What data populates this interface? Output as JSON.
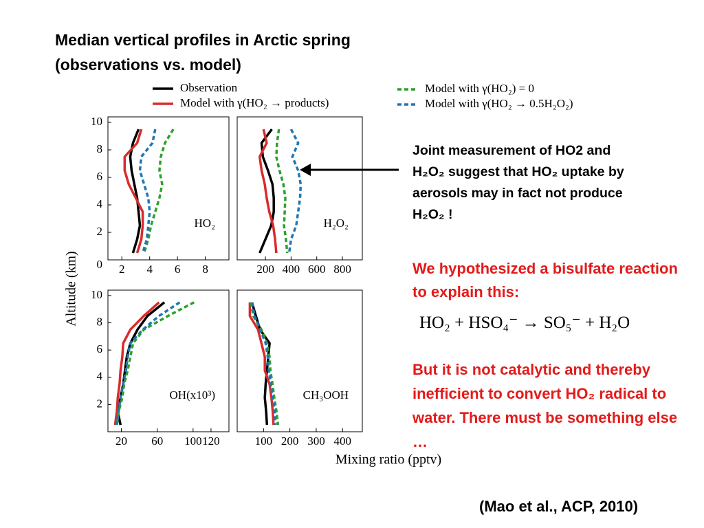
{
  "title": [
    "Median vertical profiles in Arctic spring",
    "(observations vs. model)"
  ],
  "note": "Joint measurement of HO2 and H₂O₂ suggest that HO₂ uptake by aerosols may in fact not produce H₂O₂ !",
  "hypothesis": "We hypothesized a bisulfate reaction to explain this:",
  "equation": "HO₂ + HSO₄⁻ → SO₅⁻ + H₂O",
  "conclusion": "But it is not catalytic and thereby inefficient to convert HO₂ radical to water. There must be something else …",
  "citation": "(Mao et al., ACP, 2010)",
  "ylabel": "Altitude (km)",
  "xlabel": "Mixing ratio (pptv)",
  "chart_data": [
    {
      "type": "line",
      "label": "HO₂",
      "y": [
        9.5,
        8.5,
        7.5,
        6.5,
        5.5,
        4.5,
        3.5,
        2.5,
        1.5,
        0.5
      ],
      "xlim": [
        1,
        9.7
      ],
      "xticks": [
        2,
        4,
        6,
        8
      ],
      "ylim": [
        0,
        10.4
      ],
      "yticks": [
        0,
        2,
        4,
        6,
        8,
        10
      ],
      "series": [
        {
          "name": "Observation",
          "color": "#000000",
          "dashed": false,
          "values": [
            3.2,
            2.8,
            2.6,
            2.7,
            2.9,
            3.1,
            3.2,
            3.3,
            3.1,
            2.8
          ]
        },
        {
          "name": "Model with γ(HO₂ → products)",
          "color": "#d92b2b",
          "dashed": false,
          "values": [
            3.4,
            3.1,
            2.2,
            2.2,
            2.5,
            3.0,
            3.5,
            3.5,
            3.4,
            3.1
          ]
        },
        {
          "name": "Model with γ(HO₂) = 0",
          "color": "#2ca02c",
          "dashed": true,
          "values": [
            5.7,
            5.1,
            4.8,
            4.7,
            4.9,
            4.7,
            4.4,
            4.1,
            3.9,
            3.6
          ]
        },
        {
          "name": "Model with γ(HO₂ → 0.5H₂O₂)",
          "color": "#1f77b4",
          "dashed": true,
          "values": [
            4.4,
            4.2,
            3.4,
            3.3,
            3.6,
            3.9,
            4.0,
            3.9,
            3.8,
            3.5
          ]
        }
      ]
    },
    {
      "type": "line",
      "label": "H₂O₂",
      "y": [
        9.5,
        8.5,
        7.5,
        6.5,
        5.5,
        4.5,
        3.5,
        2.5,
        1.5,
        0.5
      ],
      "xlim": [
        -20,
        955
      ],
      "xticks": [
        200,
        400,
        600,
        800
      ],
      "ylim": [
        0,
        10.4
      ],
      "series": [
        {
          "name": "Observation",
          "color": "#000000",
          "dashed": false,
          "values": [
            250,
            170,
            180,
            220,
            255,
            265,
            265,
            245,
            200,
            155
          ]
        },
        {
          "name": "Model with γ(HO₂ → products)",
          "color": "#d92b2b",
          "dashed": false,
          "values": [
            185,
            210,
            155,
            170,
            195,
            210,
            230,
            260,
            275,
            285
          ]
        },
        {
          "name": "Model with γ(HO₂) = 0",
          "color": "#2ca02c",
          "dashed": true,
          "values": [
            305,
            290,
            285,
            310,
            340,
            355,
            350,
            345,
            360,
            370
          ]
        },
        {
          "name": "Model with γ(HO₂ → 0.5H₂O₂)",
          "color": "#1f77b4",
          "dashed": true,
          "values": [
            400,
            455,
            410,
            455,
            475,
            470,
            455,
            440,
            400,
            385
          ]
        }
      ]
    },
    {
      "type": "line",
      "label": "OH(x10³)",
      "y": [
        9.5,
        8.5,
        7.5,
        6.5,
        5.5,
        4.5,
        3.5,
        2.5,
        1.5,
        0.5
      ],
      "xlim": [
        5,
        140
      ],
      "xticks": [
        20,
        60,
        100,
        120
      ],
      "ylim": [
        0,
        10.4
      ],
      "yticks": [
        2,
        4,
        6,
        8,
        10
      ],
      "series": [
        {
          "name": "Observation",
          "color": "#000000",
          "dashed": false,
          "values": [
            68,
            49,
            38,
            30,
            26,
            24,
            22,
            19,
            16,
            19
          ]
        },
        {
          "name": "Model with γ(HO₂ → products)",
          "color": "#d92b2b",
          "dashed": false,
          "values": [
            62,
            45,
            30,
            22,
            21,
            19,
            18,
            16,
            15,
            13
          ]
        },
        {
          "name": "Model with γ(HO₂) = 0",
          "color": "#2ca02c",
          "dashed": true,
          "values": [
            101,
            72,
            45,
            33,
            30,
            27,
            23,
            21,
            17,
            15
          ]
        },
        {
          "name": "Model with γ(HO₂ → 0.5H₂O₂)",
          "color": "#1f77b4",
          "dashed": true,
          "values": [
            85,
            62,
            44,
            30,
            27,
            25,
            22,
            19,
            17,
            15
          ]
        }
      ]
    },
    {
      "type": "line",
      "label": "CH₃OOH",
      "y": [
        9.5,
        8.5,
        7.5,
        6.5,
        5.5,
        4.5,
        3.5,
        2.5,
        1.5,
        0.5
      ],
      "xlim": [
        0,
        475
      ],
      "xticks": [
        100,
        200,
        300,
        400
      ],
      "ylim": [
        0,
        10.4
      ],
      "series": [
        {
          "name": "Observation",
          "color": "#000000",
          "dashed": false,
          "values": [
            56,
            71,
            87,
            123,
            118,
            113,
            108,
            105,
            110,
            113
          ]
        },
        {
          "name": "Model with γ(HO₂ → products)",
          "color": "#d92b2b",
          "dashed": false,
          "values": [
            48,
            48,
            79,
            92,
            105,
            105,
            123,
            130,
            135,
            138
          ]
        },
        {
          "name": "Model with γ(HO₂) = 0",
          "color": "#2ca02c",
          "dashed": true,
          "values": [
            53,
            61,
            92,
            113,
            123,
            126,
            134,
            141,
            149,
            155
          ]
        },
        {
          "name": "Model with γ(HO₂ → 0.5H₂O₂)",
          "color": "#1f77b4",
          "dashed": true,
          "values": [
            56,
            66,
            87,
            108,
            116,
            120,
            128,
            135,
            143,
            145
          ]
        }
      ]
    }
  ]
}
